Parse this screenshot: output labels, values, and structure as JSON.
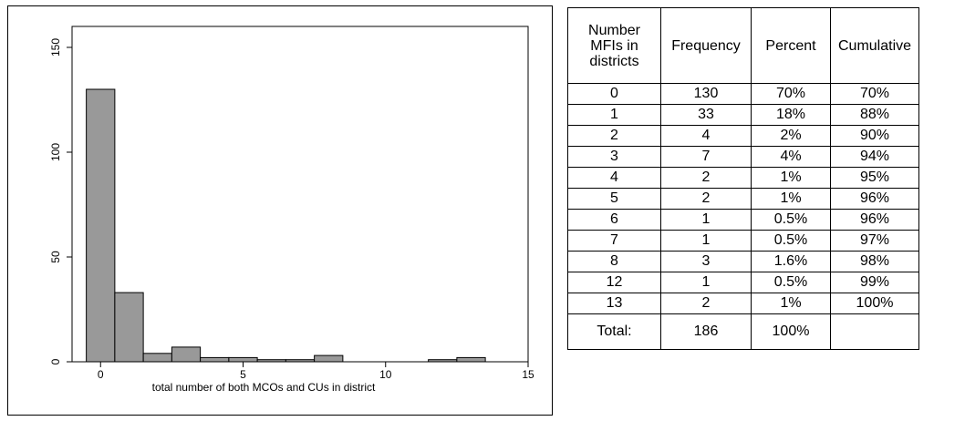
{
  "chart_data": {
    "type": "bar",
    "xlabel": "total number of both MCOs and CUs in district",
    "ylabel": "",
    "xlim": [
      -1,
      15
    ],
    "ylim": [
      0,
      160
    ],
    "xticks": [
      0,
      5,
      10,
      15
    ],
    "yticks": [
      0,
      50,
      100,
      150
    ],
    "bin_width": 1,
    "x": [
      0,
      1,
      2,
      3,
      4,
      5,
      6,
      7,
      8,
      12,
      13
    ],
    "values": [
      130,
      33,
      4,
      7,
      2,
      2,
      1,
      1,
      3,
      1,
      2
    ],
    "bar_color": "#999999",
    "grid": false
  },
  "table": {
    "headers": [
      "Number MFIs in districts",
      "Frequency",
      "Percent",
      "Cumulative"
    ],
    "rows": [
      [
        "0",
        "130",
        "70%",
        "70%"
      ],
      [
        "1",
        "33",
        "18%",
        "88%"
      ],
      [
        "2",
        "4",
        "2%",
        "90%"
      ],
      [
        "3",
        "7",
        "4%",
        "94%"
      ],
      [
        "4",
        "2",
        "1%",
        "95%"
      ],
      [
        "5",
        "2",
        "1%",
        "96%"
      ],
      [
        "6",
        "1",
        "0.5%",
        "96%"
      ],
      [
        "7",
        "1",
        "0.5%",
        "97%"
      ],
      [
        "8",
        "3",
        "1.6%",
        "98%"
      ],
      [
        "12",
        "1",
        "0.5%",
        "99%"
      ],
      [
        "13",
        "2",
        "1%",
        "100%"
      ]
    ],
    "total": [
      "Total:",
      "186",
      "100%",
      ""
    ]
  }
}
